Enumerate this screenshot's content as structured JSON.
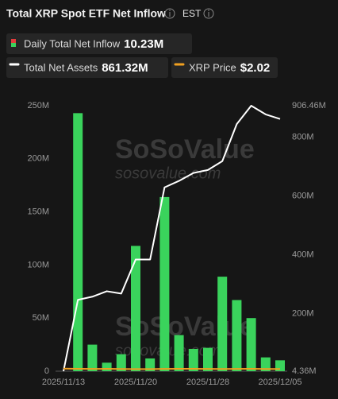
{
  "chart_data": {
    "type": "bar-line",
    "title": "Total XRP Spot ETF Net Inflow",
    "timezone": "EST",
    "watermark": [
      "SoSoValue",
      "sosovalue.com"
    ],
    "categories": [
      "2025/11/13",
      null,
      null,
      null,
      null,
      "2025/11/20",
      null,
      null,
      null,
      null,
      "2025/11/28",
      null,
      null,
      null,
      null,
      "2025/12/05"
    ],
    "series": [
      {
        "name": "Daily Total Net Inflow",
        "latest": "10.23M",
        "color": "#3ad35c",
        "kind": "bar",
        "axis": "y",
        "values": [
          0,
          243,
          25,
          8,
          16,
          118,
          12,
          164,
          34,
          21,
          22,
          89,
          67,
          50,
          13,
          10.23
        ]
      },
      {
        "name": "Total Net Assets",
        "latest": "861.32M",
        "color": "#ffffff",
        "kind": "line",
        "axis": "y2",
        "values": [
          4.36,
          246.7,
          257.5,
          276,
          268,
          384,
          384,
          629,
          651,
          678,
          688,
          718,
          844,
          906.46,
          877,
          861.32
        ]
      },
      {
        "name": "XRP Price",
        "latest": "$2.02",
        "color": "#f0a020",
        "kind": "line",
        "axis": "y",
        "values": [
          2.4,
          2.28,
          2.15,
          2.22,
          2.1,
          1.98,
          1.95,
          2.18,
          2.21,
          2.2,
          2.19,
          2.05,
          2.18,
          2.22,
          2.09,
          2.02
        ]
      }
    ],
    "ylim": [
      0,
      250
    ],
    "yticks": [
      0,
      {
        "value": 50,
        "label": "50M"
      },
      {
        "value": 100,
        "label": "100M"
      },
      {
        "value": 150,
        "label": "150M"
      },
      {
        "value": 200,
        "label": "200M"
      },
      {
        "value": 250,
        "label": "250M"
      }
    ],
    "y2lim": [
      4.36,
      906.46
    ],
    "y2ticks": [
      {
        "value": 4.36,
        "label": "4.36M"
      },
      {
        "value": 200,
        "label": "200M"
      },
      {
        "value": 400,
        "label": "400M"
      },
      {
        "value": 600,
        "label": "600M"
      },
      {
        "value": 800,
        "label": "800M"
      },
      {
        "value": 906.46,
        "label": "906.46M"
      }
    ],
    "grid": false
  }
}
